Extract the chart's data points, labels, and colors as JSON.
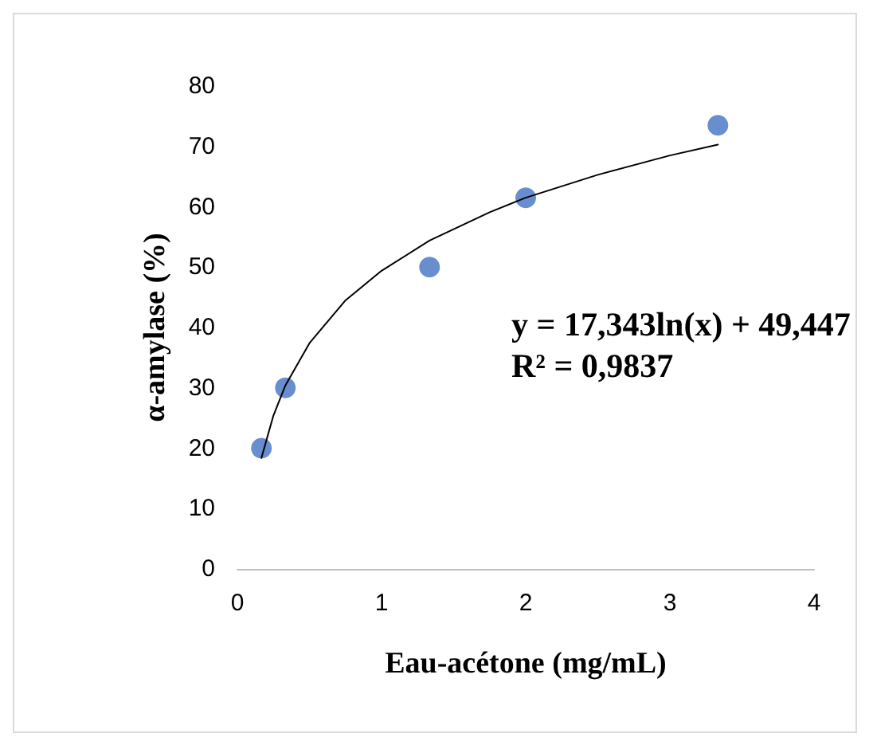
{
  "chart_data": {
    "type": "scatter",
    "xlabel": "Eau-acétone (mg/mL)",
    "ylabel": "α-amylase (%)",
    "xlim": [
      0,
      4
    ],
    "xticks": [
      0,
      1,
      2,
      3,
      4
    ],
    "ylim": [
      0,
      80
    ],
    "yticks": [
      0,
      10,
      20,
      30,
      40,
      50,
      60,
      70,
      80
    ],
    "grid": false,
    "marker": "circle",
    "annotations": [
      "y = 17,343ln(x) + 49,447",
      "R² = 0,9837"
    ],
    "series": [
      {
        "color": "#4472c4",
        "x": [
          0.167,
          0.333,
          1.333,
          2,
          3.333
        ],
        "values": [
          20,
          30,
          50,
          61.5,
          73.5
        ]
      },
      {
        "type": "line",
        "color": "#000000",
        "marker": "none",
        "line_style": "solid",
        "x": [
          0.167,
          0.25,
          0.333,
          0.5,
          0.75,
          1,
          1.333,
          1.75,
          2,
          2.5,
          3,
          3.333
        ],
        "values": [
          18.4,
          25.4,
          30.4,
          37.4,
          44.5,
          49.4,
          54.4,
          59.1,
          61.5,
          65.3,
          68.5,
          70.3
        ]
      }
    ]
  }
}
